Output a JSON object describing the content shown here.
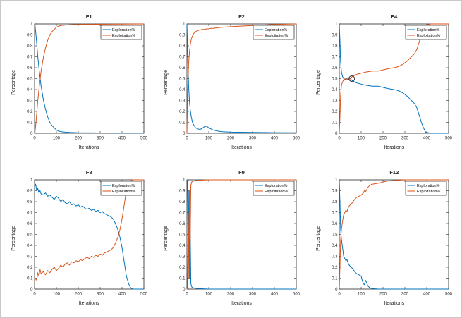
{
  "figure": {
    "background": "#ffffff",
    "axis_color": "#262626",
    "legend": {
      "border_color": "#000000",
      "labels": [
        "Exploration%",
        "Exploitation%"
      ],
      "position": "top-right"
    },
    "colors": {
      "exploration": "#0072BD",
      "exploitation": "#D95319"
    }
  },
  "chart_data": [
    {
      "type": "line",
      "title": "F1",
      "xlabel": "Iterations",
      "ylabel": "Percentage",
      "xlim": [
        0,
        500
      ],
      "ylim": [
        0,
        1
      ],
      "xticks": [
        0,
        100,
        200,
        300,
        400,
        500
      ],
      "yticks": [
        0,
        0.1,
        0.2,
        0.3,
        0.4,
        0.5,
        0.6,
        0.7,
        0.8,
        0.9,
        1
      ],
      "series": [
        {
          "name": "Exploration%",
          "color": "#0072BD",
          "x": [
            0,
            2,
            5,
            10,
            15,
            20,
            25,
            30,
            35,
            40,
            50,
            60,
            70,
            80,
            90,
            100,
            110,
            120,
            140,
            160,
            200,
            300,
            400,
            500
          ],
          "y": [
            1,
            0.99,
            0.93,
            0.82,
            0.7,
            0.6,
            0.51,
            0.43,
            0.37,
            0.31,
            0.22,
            0.15,
            0.1,
            0.07,
            0.05,
            0.03,
            0.02,
            0.015,
            0.01,
            0.008,
            0.005,
            0.003,
            0.002,
            0.001
          ]
        },
        {
          "name": "Exploitation%",
          "color": "#D95319",
          "x": [
            0,
            2,
            5,
            10,
            15,
            20,
            25,
            30,
            35,
            40,
            50,
            60,
            70,
            80,
            90,
            100,
            110,
            120,
            140,
            160,
            200,
            300,
            400,
            500
          ],
          "y": [
            0,
            0.01,
            0.07,
            0.18,
            0.3,
            0.4,
            0.49,
            0.57,
            0.63,
            0.69,
            0.78,
            0.85,
            0.9,
            0.93,
            0.95,
            0.97,
            0.98,
            0.985,
            0.99,
            0.992,
            0.995,
            0.997,
            0.999,
            1
          ]
        }
      ]
    },
    {
      "type": "line",
      "title": "F2",
      "xlabel": "Iterations",
      "ylabel": "Percentage",
      "xlim": [
        0,
        500
      ],
      "ylim": [
        0,
        1
      ],
      "xticks": [
        0,
        100,
        200,
        300,
        400,
        500
      ],
      "yticks": [
        0,
        0.1,
        0.2,
        0.3,
        0.4,
        0.5,
        0.6,
        0.7,
        0.8,
        0.9,
        1
      ],
      "series": [
        {
          "name": "Exploration%",
          "color": "#0072BD",
          "x": [
            0,
            2,
            5,
            8,
            12,
            16,
            20,
            25,
            30,
            40,
            50,
            60,
            70,
            80,
            90,
            100,
            110,
            120,
            140,
            160,
            200,
            300,
            400,
            500
          ],
          "y": [
            1,
            0.85,
            0.6,
            0.42,
            0.28,
            0.2,
            0.15,
            0.1,
            0.08,
            0.05,
            0.04,
            0.035,
            0.045,
            0.06,
            0.065,
            0.05,
            0.04,
            0.03,
            0.02,
            0.015,
            0.01,
            0.008,
            0.006,
            0.005
          ]
        },
        {
          "name": "Exploitation%",
          "color": "#D95319",
          "x": [
            0,
            2,
            5,
            8,
            12,
            16,
            20,
            25,
            30,
            40,
            50,
            60,
            70,
            80,
            90,
            100,
            110,
            120,
            140,
            160,
            200,
            300,
            400,
            500
          ],
          "y": [
            0,
            0.2,
            0.5,
            0.65,
            0.75,
            0.82,
            0.86,
            0.89,
            0.91,
            0.93,
            0.94,
            0.945,
            0.95,
            0.95,
            0.955,
            0.955,
            0.96,
            0.96,
            0.965,
            0.97,
            0.975,
            0.985,
            0.995,
            1
          ]
        }
      ]
    },
    {
      "type": "line",
      "title": "F4",
      "xlabel": "Iterations",
      "ylabel": "Percentage",
      "xlim": [
        0,
        500
      ],
      "ylim": [
        0,
        1
      ],
      "xticks": [
        0,
        100,
        200,
        300,
        400,
        500
      ],
      "yticks": [
        0,
        0.1,
        0.2,
        0.3,
        0.4,
        0.5,
        0.6,
        0.7,
        0.8,
        0.9,
        1
      ],
      "annotation": {
        "type": "circle",
        "x": 57,
        "y": 0.5
      },
      "series": [
        {
          "name": "Exploration%",
          "color": "#0072BD",
          "x": [
            0,
            3,
            6,
            10,
            15,
            20,
            30,
            40,
            50,
            55,
            60,
            70,
            80,
            100,
            120,
            150,
            180,
            200,
            220,
            250,
            270,
            290,
            310,
            330,
            345,
            355,
            365,
            375,
            385,
            395,
            420,
            500
          ],
          "y": [
            1,
            0.85,
            0.65,
            0.56,
            0.52,
            0.5,
            0.49,
            0.51,
            0.5,
            0.49,
            0.48,
            0.47,
            0.46,
            0.45,
            0.44,
            0.43,
            0.43,
            0.42,
            0.41,
            0.4,
            0.39,
            0.37,
            0.34,
            0.3,
            0.27,
            0.23,
            0.17,
            0.1,
            0.05,
            0.01,
            0,
            0
          ]
        },
        {
          "name": "Exploitation%",
          "color": "#D95319",
          "x": [
            0,
            3,
            6,
            10,
            15,
            20,
            30,
            40,
            50,
            55,
            60,
            70,
            80,
            100,
            120,
            150,
            180,
            200,
            220,
            250,
            270,
            290,
            310,
            330,
            345,
            355,
            365,
            375,
            385,
            395,
            420,
            500
          ],
          "y": [
            0,
            0.15,
            0.35,
            0.44,
            0.47,
            0.49,
            0.5,
            0.49,
            0.5,
            0.51,
            0.52,
            0.53,
            0.54,
            0.55,
            0.56,
            0.57,
            0.57,
            0.58,
            0.59,
            0.6,
            0.61,
            0.63,
            0.66,
            0.7,
            0.73,
            0.77,
            0.83,
            0.9,
            0.95,
            0.99,
            1,
            1
          ]
        }
      ]
    },
    {
      "type": "line",
      "title": "F8",
      "xlabel": "Iterations",
      "ylabel": "Percentage",
      "xlim": [
        0,
        500
      ],
      "ylim": [
        0,
        1
      ],
      "xticks": [
        0,
        100,
        200,
        300,
        400,
        500
      ],
      "yticks": [
        0,
        0.1,
        0.2,
        0.3,
        0.4,
        0.5,
        0.6,
        0.7,
        0.8,
        0.9,
        1
      ],
      "series": [
        {
          "name": "Exploration%",
          "color": "#0072BD",
          "x": [
            0,
            5,
            10,
            15,
            20,
            25,
            30,
            40,
            50,
            60,
            70,
            80,
            90,
            100,
            110,
            120,
            130,
            140,
            150,
            160,
            170,
            180,
            190,
            200,
            210,
            220,
            230,
            240,
            250,
            260,
            270,
            280,
            290,
            300,
            310,
            320,
            330,
            340,
            350,
            360,
            370,
            380,
            390,
            400,
            410,
            420,
            430,
            440,
            450,
            500
          ],
          "y": [
            0.93,
            0.96,
            0.9,
            0.92,
            0.88,
            0.9,
            0.87,
            0.86,
            0.88,
            0.85,
            0.86,
            0.84,
            0.82,
            0.85,
            0.83,
            0.8,
            0.82,
            0.79,
            0.78,
            0.8,
            0.77,
            0.78,
            0.76,
            0.77,
            0.75,
            0.76,
            0.74,
            0.73,
            0.74,
            0.72,
            0.73,
            0.71,
            0.72,
            0.7,
            0.71,
            0.69,
            0.68,
            0.67,
            0.66,
            0.64,
            0.6,
            0.55,
            0.48,
            0.38,
            0.25,
            0.12,
            0.05,
            0.01,
            0,
            0
          ]
        },
        {
          "name": "Exploitation%",
          "color": "#D95319",
          "x": [
            0,
            5,
            10,
            15,
            20,
            25,
            30,
            40,
            50,
            60,
            70,
            80,
            90,
            100,
            110,
            120,
            130,
            140,
            150,
            160,
            170,
            180,
            190,
            200,
            210,
            220,
            230,
            240,
            250,
            260,
            270,
            280,
            290,
            300,
            310,
            320,
            330,
            340,
            350,
            360,
            370,
            380,
            390,
            400,
            410,
            420,
            430,
            440,
            450,
            500
          ],
          "y": [
            0.07,
            0.1,
            0.08,
            0.15,
            0.12,
            0.18,
            0.14,
            0.16,
            0.13,
            0.17,
            0.15,
            0.18,
            0.2,
            0.17,
            0.19,
            0.22,
            0.2,
            0.23,
            0.24,
            0.22,
            0.25,
            0.24,
            0.26,
            0.25,
            0.27,
            0.26,
            0.28,
            0.29,
            0.28,
            0.3,
            0.29,
            0.31,
            0.3,
            0.32,
            0.31,
            0.33,
            0.34,
            0.35,
            0.36,
            0.38,
            0.42,
            0.47,
            0.54,
            0.64,
            0.77,
            0.9,
            0.96,
            0.99,
            1,
            1
          ]
        }
      ]
    },
    {
      "type": "line",
      "title": "F9",
      "xlabel": "Iterations",
      "ylabel": "Percentage",
      "xlim": [
        0,
        500
      ],
      "ylim": [
        0,
        1
      ],
      "xticks": [
        0,
        100,
        200,
        300,
        400,
        500
      ],
      "yticks": [
        0,
        0.1,
        0.2,
        0.3,
        0.4,
        0.5,
        0.6,
        0.7,
        0.8,
        0.9,
        1
      ],
      "series": [
        {
          "name": "Exploration%",
          "color": "#0072BD",
          "x": [
            0,
            3,
            6,
            9,
            12,
            15,
            18,
            22,
            30,
            50,
            100,
            500
          ],
          "y": [
            1,
            0.98,
            0.3,
            0.9,
            0.1,
            0.6,
            0.05,
            0.02,
            0.01,
            0.005,
            0,
            0
          ]
        },
        {
          "name": "Exploitation%",
          "color": "#D95319",
          "x": [
            0,
            3,
            6,
            9,
            12,
            15,
            18,
            22,
            30,
            50,
            100,
            500
          ],
          "y": [
            0,
            0.02,
            0.7,
            0.1,
            0.9,
            0.4,
            0.95,
            0.98,
            0.99,
            0.995,
            1,
            1
          ]
        }
      ]
    },
    {
      "type": "line",
      "title": "F12",
      "xlabel": "Iterations",
      "ylabel": "Percentage",
      "xlim": [
        0,
        500
      ],
      "ylim": [
        0,
        1
      ],
      "xticks": [
        0,
        100,
        200,
        300,
        400,
        500
      ],
      "yticks": [
        0,
        0.1,
        0.2,
        0.3,
        0.4,
        0.5,
        0.6,
        0.7,
        0.8,
        0.9,
        1
      ],
      "series": [
        {
          "name": "Exploration%",
          "color": "#0072BD",
          "x": [
            0,
            3,
            6,
            10,
            15,
            20,
            25,
            30,
            35,
            40,
            45,
            50,
            60,
            70,
            80,
            90,
            100,
            105,
            110,
            115,
            120,
            125,
            130,
            140,
            150,
            180,
            220,
            300,
            400,
            500
          ],
          "y": [
            1,
            0.8,
            0.55,
            0.45,
            0.38,
            0.3,
            0.28,
            0.26,
            0.27,
            0.24,
            0.22,
            0.21,
            0.19,
            0.16,
            0.14,
            0.13,
            0.12,
            0.08,
            0.05,
            0.04,
            0.08,
            0.06,
            0.03,
            0.01,
            0.005,
            0,
            0,
            0,
            0,
            0
          ]
        },
        {
          "name": "Exploitation%",
          "color": "#D95319",
          "x": [
            0,
            3,
            6,
            10,
            15,
            20,
            25,
            30,
            35,
            40,
            45,
            50,
            60,
            70,
            80,
            90,
            100,
            105,
            110,
            115,
            120,
            125,
            130,
            140,
            150,
            180,
            220,
            300,
            400,
            500
          ],
          "y": [
            0,
            0.2,
            0.45,
            0.55,
            0.62,
            0.68,
            0.7,
            0.72,
            0.71,
            0.74,
            0.76,
            0.77,
            0.79,
            0.82,
            0.84,
            0.85,
            0.86,
            0.87,
            0.88,
            0.9,
            0.89,
            0.91,
            0.93,
            0.95,
            0.96,
            0.97,
            0.99,
            1,
            1,
            1
          ]
        }
      ]
    }
  ]
}
